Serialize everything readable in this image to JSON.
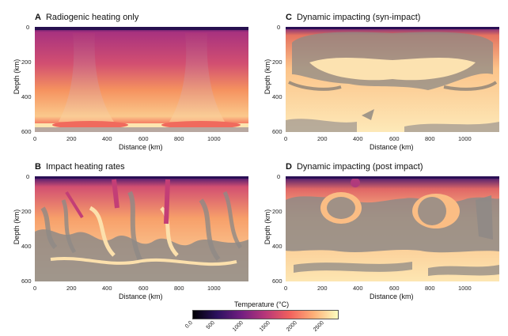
{
  "panels": [
    {
      "letter": "A",
      "title": "Radiogenic heating only",
      "xlabel": "Distance (km)",
      "ylabel": "Depth (km)",
      "xticks": [
        "0",
        "200",
        "400",
        "600",
        "800",
        "1000"
      ],
      "yticks": [
        "0",
        "200",
        "400",
        "600"
      ]
    },
    {
      "letter": "C",
      "title": "Dynamic impacting (syn-impact)",
      "xlabel": "Distance (km)",
      "ylabel": "Depth (km)",
      "xticks": [
        "0",
        "200",
        "400",
        "600",
        "800",
        "1000"
      ],
      "yticks": [
        "0",
        "200",
        "400",
        "600"
      ]
    },
    {
      "letter": "B",
      "title": "Impact heating rates",
      "xlabel": "Distance (km)",
      "ylabel": "Depth (km)",
      "xticks": [
        "0",
        "200",
        "400",
        "600",
        "800",
        "1000"
      ],
      "yticks": [
        "0",
        "200",
        "400",
        "600"
      ]
    },
    {
      "letter": "D",
      "title": "Dynamic impacting (post impact)",
      "xlabel": "Distance (km)",
      "ylabel": "Depth (km)",
      "xticks": [
        "0",
        "200",
        "400",
        "600",
        "800",
        "1000"
      ],
      "yticks": [
        "0",
        "200",
        "400",
        "600"
      ]
    }
  ],
  "colorbar": {
    "title": "Temperature (°C)",
    "ticks": [
      "0.0",
      "500",
      "1000",
      "1500",
      "2000",
      "2500"
    ],
    "colors": [
      "#000004",
      "#2c115f",
      "#721f81",
      "#b73779",
      "#f1605d",
      "#feb078",
      "#fcfdbf"
    ]
  }
}
